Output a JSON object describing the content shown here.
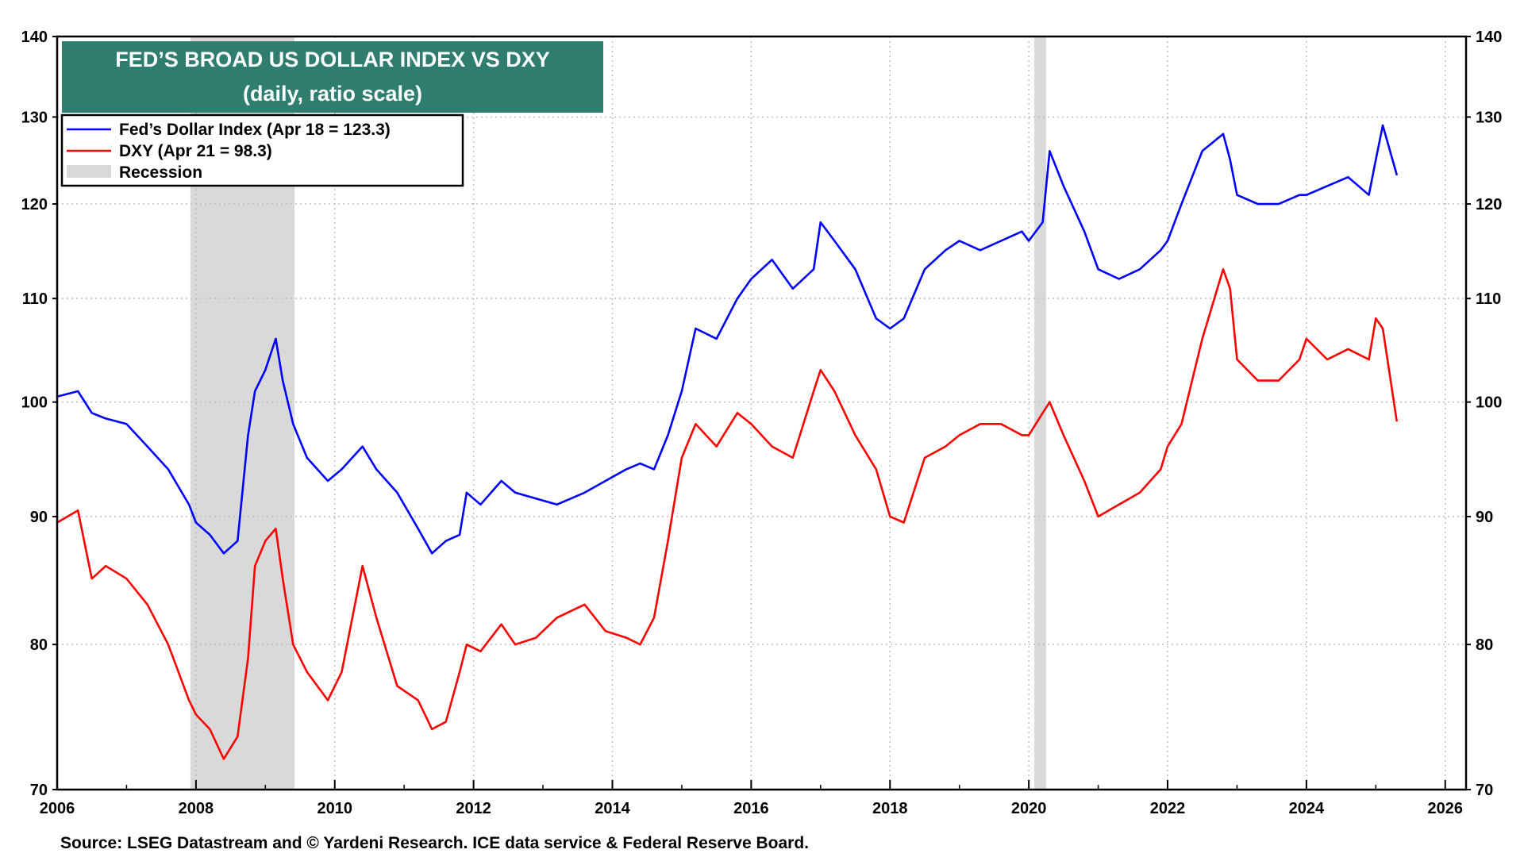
{
  "chart_data": {
    "type": "line",
    "title": "FED’S BROAD US DOLLAR INDEX VS DXY",
    "subtitle": "(daily, ratio scale)",
    "source": "Source: LSEG Datastream and © Yardeni Research. ICE data service & Federal Reserve Board.",
    "x_range": [
      2006,
      2026.3
    ],
    "x_ticks": [
      "2006",
      "2008",
      "2010",
      "2012",
      "2014",
      "2016",
      "2018",
      "2020",
      "2022",
      "2024",
      "2026"
    ],
    "y_scale": "log",
    "y_range": [
      70,
      140
    ],
    "y_ticks": [
      "70",
      "80",
      "90",
      "100",
      "110",
      "120",
      "130",
      "140"
    ],
    "grid": true,
    "legend_position": "top-left",
    "legend": [
      {
        "label": "Fed’s Dollar Index (Apr 18 = 123.3)",
        "color": "#0000ff",
        "kind": "line"
      },
      {
        "label": "DXY (Apr 21 = 98.3)",
        "color": "#ff0000",
        "kind": "line"
      },
      {
        "label": "Recession",
        "color": "#d9d9d9",
        "kind": "box"
      }
    ],
    "recessions": [
      [
        2007.92,
        2009.42
      ],
      [
        2020.08,
        2020.25
      ]
    ],
    "series": [
      {
        "name": "Fed’s Dollar Index (Apr 18 = 123.3)",
        "color": "#0000ff",
        "x": [
          2006.0,
          2006.3,
          2006.5,
          2006.7,
          2007.0,
          2007.3,
          2007.6,
          2007.9,
          2008.0,
          2008.2,
          2008.4,
          2008.6,
          2008.75,
          2008.85,
          2009.0,
          2009.15,
          2009.25,
          2009.4,
          2009.6,
          2009.9,
          2010.1,
          2010.4,
          2010.6,
          2010.9,
          2011.2,
          2011.4,
          2011.6,
          2011.8,
          2011.9,
          2012.1,
          2012.4,
          2012.6,
          2012.9,
          2013.2,
          2013.6,
          2013.9,
          2014.2,
          2014.4,
          2014.6,
          2014.8,
          2015.0,
          2015.2,
          2015.5,
          2015.8,
          2016.0,
          2016.3,
          2016.6,
          2016.9,
          2017.0,
          2017.2,
          2017.5,
          2017.8,
          2018.0,
          2018.2,
          2018.5,
          2018.8,
          2019.0,
          2019.3,
          2019.6,
          2019.9,
          2020.0,
          2020.2,
          2020.3,
          2020.5,
          2020.8,
          2021.0,
          2021.3,
          2021.6,
          2021.9,
          2022.0,
          2022.2,
          2022.5,
          2022.8,
          2022.9,
          2023.0,
          2023.3,
          2023.6,
          2023.9,
          2024.0,
          2024.3,
          2024.6,
          2024.9,
          2025.0,
          2025.1,
          2025.3
        ],
        "values": [
          100.5,
          101,
          99,
          98.5,
          98,
          96,
          94,
          91,
          89.5,
          88.5,
          87,
          88,
          97,
          101,
          103,
          106,
          102,
          98,
          95,
          93,
          94,
          96,
          94,
          92,
          89,
          87,
          88,
          88.5,
          92,
          91,
          93,
          92,
          91.5,
          91,
          92,
          93,
          94,
          94.5,
          94,
          97,
          101,
          107,
          106,
          110,
          112,
          114,
          111,
          113,
          118,
          116,
          113,
          108,
          107,
          108,
          113,
          115,
          116,
          115,
          116,
          117,
          116,
          118,
          126,
          122,
          117,
          113,
          112,
          113,
          115,
          116,
          120,
          126,
          128,
          125,
          121,
          120,
          120,
          121,
          121,
          122,
          123,
          121,
          125,
          129,
          123.3
        ]
      },
      {
        "name": "DXY (Apr 21 = 98.3)",
        "color": "#ff0000",
        "x": [
          2006.0,
          2006.3,
          2006.5,
          2006.7,
          2007.0,
          2007.3,
          2007.6,
          2007.9,
          2008.0,
          2008.2,
          2008.4,
          2008.6,
          2008.75,
          2008.85,
          2009.0,
          2009.15,
          2009.25,
          2009.4,
          2009.6,
          2009.9,
          2010.1,
          2010.4,
          2010.6,
          2010.9,
          2011.2,
          2011.4,
          2011.6,
          2011.8,
          2011.9,
          2012.1,
          2012.4,
          2012.6,
          2012.9,
          2013.2,
          2013.6,
          2013.9,
          2014.2,
          2014.4,
          2014.6,
          2014.8,
          2015.0,
          2015.2,
          2015.5,
          2015.8,
          2016.0,
          2016.3,
          2016.6,
          2016.9,
          2017.0,
          2017.2,
          2017.5,
          2017.8,
          2018.0,
          2018.2,
          2018.5,
          2018.8,
          2019.0,
          2019.3,
          2019.6,
          2019.9,
          2020.0,
          2020.2,
          2020.3,
          2020.5,
          2020.8,
          2021.0,
          2021.3,
          2021.6,
          2021.9,
          2022.0,
          2022.2,
          2022.5,
          2022.8,
          2022.9,
          2023.0,
          2023.3,
          2023.6,
          2023.9,
          2024.0,
          2024.3,
          2024.6,
          2024.9,
          2025.0,
          2025.1,
          2025.3
        ],
        "values": [
          89.5,
          90.5,
          85,
          86,
          85,
          83,
          80,
          76,
          75,
          74,
          72,
          73.5,
          79,
          86,
          88,
          89,
          85,
          80,
          78,
          76,
          78,
          86,
          82,
          77,
          76,
          74,
          74.5,
          78,
          80,
          79.5,
          81.5,
          80,
          80.5,
          82,
          83,
          81,
          80.5,
          80,
          82,
          88,
          95,
          98,
          96,
          99,
          98,
          96,
          95,
          101,
          103,
          101,
          97,
          94,
          90,
          89.5,
          95,
          96,
          97,
          98,
          98,
          97,
          97,
          99,
          100,
          97,
          93,
          90,
          91,
          92,
          94,
          96,
          98,
          106,
          113,
          111,
          104,
          102,
          102,
          104,
          106,
          104,
          105,
          104,
          108,
          107,
          98.3
        ]
      }
    ]
  }
}
